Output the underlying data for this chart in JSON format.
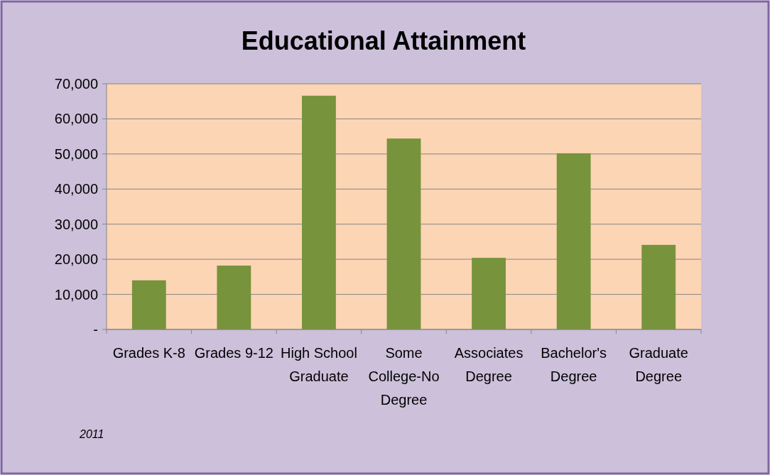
{
  "chart_data": {
    "type": "bar",
    "title": "Educational Attainment",
    "categories": [
      "Grades K-8",
      "Grades 9-12",
      "High School Graduate",
      "Some College-No Degree",
      "Associates Degree",
      "Bachelor's Degree",
      "Graduate Degree"
    ],
    "values": [
      14000,
      18200,
      66600,
      54400,
      20400,
      50200,
      24100
    ],
    "color": "#77933c",
    "ylim": [
      0,
      70000
    ],
    "yticks": [
      {
        "value": 0,
        "label": "-"
      },
      {
        "value": 10000,
        "label": "10,000"
      },
      {
        "value": 20000,
        "label": "20,000"
      },
      {
        "value": 30000,
        "label": "30,000"
      },
      {
        "value": 40000,
        "label": "40,000"
      },
      {
        "value": 50000,
        "label": "50,000"
      },
      {
        "value": 60000,
        "label": "60,000"
      },
      {
        "value": 70000,
        "label": "70,000"
      }
    ],
    "grid": "y",
    "annotations": [
      "2011"
    ]
  }
}
